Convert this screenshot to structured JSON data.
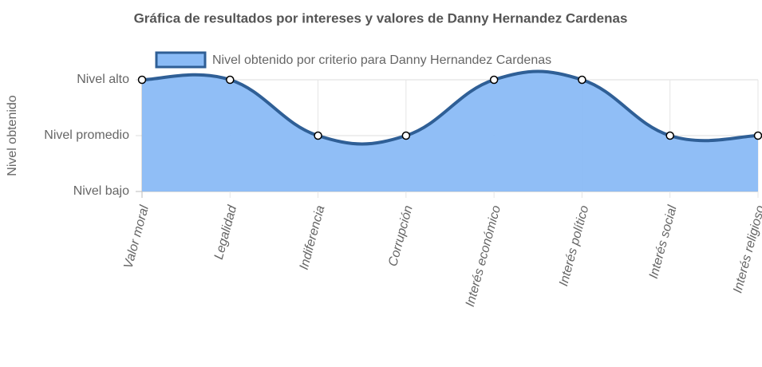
{
  "chart_data": {
    "type": "line",
    "title": "Gráfica de resultados por intereses y valores de Danny Hernandez Cardenas",
    "y_label": "Nivel obtenido",
    "categories": [
      "Valor moral",
      "Legalidad",
      "Indiferencia",
      "Corrupción",
      "Interés económico",
      "Interés político",
      "Interés social",
      "Interés religioso"
    ],
    "series": [
      {
        "name": "Nivel obtenido por criterio para Danny Hernandez Cardenas",
        "color": "#8abbf6",
        "border_color": "#2f5f96",
        "values": [
          3,
          3,
          2,
          2,
          3,
          3,
          2,
          2
        ]
      }
    ],
    "ylim": [
      1,
      3
    ],
    "yticks": [
      {
        "value": 1,
        "label": "Nivel bajo"
      },
      {
        "value": 2,
        "label": "Nivel promedio"
      },
      {
        "value": 3,
        "label": "Nivel alto"
      }
    ],
    "grid": true,
    "fill": true,
    "legend": "top"
  }
}
